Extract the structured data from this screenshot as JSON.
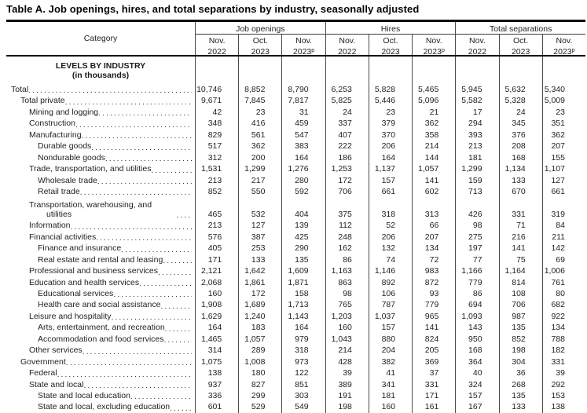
{
  "title": "Table A. Job openings, hires, and total separations by industry, seasonally adjusted",
  "header": {
    "category_label": "Category",
    "groups": [
      {
        "label": "Job openings"
      },
      {
        "label": "Hires"
      },
      {
        "label": "Total separations"
      }
    ],
    "columns": [
      {
        "month": "Nov.",
        "year": "2022",
        "sup": ""
      },
      {
        "month": "Oct.",
        "year": "2023",
        "sup": ""
      },
      {
        "month": "Nov.",
        "year": "2023",
        "sup": "p"
      },
      {
        "month": "Nov.",
        "year": "2022",
        "sup": ""
      },
      {
        "month": "Oct.",
        "year": "2023",
        "sup": ""
      },
      {
        "month": "Nov.",
        "year": "2023",
        "sup": "p"
      },
      {
        "month": "Nov.",
        "year": "2022",
        "sup": ""
      },
      {
        "month": "Oct.",
        "year": "2023",
        "sup": ""
      },
      {
        "month": "Nov.",
        "year": "2023",
        "sup": "p"
      }
    ]
  },
  "section_header": {
    "line1": "LEVELS BY INDUSTRY",
    "line2": "(in thousands)"
  },
  "rows": [
    {
      "label": "Total",
      "indent": 0,
      "wrap": false,
      "values": [
        "10,746",
        "8,852",
        "8,790",
        "6,253",
        "5,828",
        "5,465",
        "5,945",
        "5,632",
        "5,340"
      ]
    },
    {
      "label": "Total private",
      "indent": 1,
      "wrap": false,
      "values": [
        "9,671",
        "7,845",
        "7,817",
        "5,825",
        "5,446",
        "5,096",
        "5,582",
        "5,328",
        "5,009"
      ]
    },
    {
      "label": "Mining and logging",
      "indent": 2,
      "wrap": false,
      "values": [
        "42",
        "23",
        "31",
        "24",
        "23",
        "21",
        "17",
        "24",
        "23"
      ]
    },
    {
      "label": "Construction",
      "indent": 2,
      "wrap": false,
      "values": [
        "348",
        "416",
        "459",
        "337",
        "379",
        "362",
        "294",
        "345",
        "351"
      ]
    },
    {
      "label": "Manufacturing",
      "indent": 2,
      "wrap": false,
      "values": [
        "829",
        "561",
        "547",
        "407",
        "370",
        "358",
        "393",
        "376",
        "362"
      ]
    },
    {
      "label": "Durable goods",
      "indent": 3,
      "wrap": false,
      "values": [
        "517",
        "362",
        "383",
        "222",
        "206",
        "214",
        "213",
        "208",
        "207"
      ]
    },
    {
      "label": "Nondurable goods",
      "indent": 3,
      "wrap": false,
      "values": [
        "312",
        "200",
        "164",
        "186",
        "164",
        "144",
        "181",
        "168",
        "155"
      ]
    },
    {
      "label": "Trade, transportation, and utilities",
      "indent": 2,
      "wrap": false,
      "values": [
        "1,531",
        "1,299",
        "1,276",
        "1,253",
        "1,137",
        "1,057",
        "1,299",
        "1,134",
        "1,107"
      ]
    },
    {
      "label": "Wholesale trade",
      "indent": 3,
      "wrap": false,
      "values": [
        "213",
        "217",
        "280",
        "172",
        "157",
        "141",
        "159",
        "133",
        "127"
      ]
    },
    {
      "label": "Retail trade",
      "indent": 3,
      "wrap": false,
      "values": [
        "852",
        "550",
        "592",
        "706",
        "661",
        "602",
        "713",
        "670",
        "661"
      ]
    },
    {
      "label": "Transportation, warehousing, and utilities",
      "indent": 3,
      "wrap": true,
      "values": [
        "465",
        "532",
        "404",
        "375",
        "318",
        "313",
        "426",
        "331",
        "319"
      ]
    },
    {
      "label": "Information",
      "indent": 2,
      "wrap": false,
      "values": [
        "213",
        "127",
        "139",
        "112",
        "52",
        "66",
        "98",
        "71",
        "84"
      ]
    },
    {
      "label": "Financial activities",
      "indent": 2,
      "wrap": false,
      "values": [
        "576",
        "387",
        "425",
        "248",
        "206",
        "207",
        "275",
        "216",
        "211"
      ]
    },
    {
      "label": "Finance and insurance",
      "indent": 3,
      "wrap": false,
      "values": [
        "405",
        "253",
        "290",
        "162",
        "132",
        "134",
        "197",
        "141",
        "142"
      ]
    },
    {
      "label": "Real estate and rental and leasing",
      "indent": 3,
      "wrap": false,
      "values": [
        "171",
        "133",
        "135",
        "86",
        "74",
        "72",
        "77",
        "75",
        "69"
      ]
    },
    {
      "label": "Professional and business services",
      "indent": 2,
      "wrap": false,
      "values": [
        "2,121",
        "1,642",
        "1,609",
        "1,163",
        "1,146",
        "983",
        "1,166",
        "1,164",
        "1,006"
      ]
    },
    {
      "label": "Education and health services",
      "indent": 2,
      "wrap": false,
      "values": [
        "2,068",
        "1,861",
        "1,871",
        "863",
        "892",
        "872",
        "779",
        "814",
        "761"
      ]
    },
    {
      "label": "Educational services",
      "indent": 3,
      "wrap": false,
      "values": [
        "160",
        "172",
        "158",
        "98",
        "106",
        "93",
        "86",
        "108",
        "80"
      ]
    },
    {
      "label": "Health care and social assistance",
      "indent": 3,
      "wrap": false,
      "values": [
        "1,908",
        "1,689",
        "1,713",
        "765",
        "787",
        "779",
        "694",
        "706",
        "682"
      ]
    },
    {
      "label": "Leisure and hospitality",
      "indent": 2,
      "wrap": false,
      "values": [
        "1,629",
        "1,240",
        "1,143",
        "1,203",
        "1,037",
        "965",
        "1,093",
        "987",
        "922"
      ]
    },
    {
      "label": "Arts, entertainment, and recreation",
      "indent": 3,
      "wrap": false,
      "values": [
        "164",
        "183",
        "164",
        "160",
        "157",
        "141",
        "143",
        "135",
        "134"
      ]
    },
    {
      "label": "Accommodation and food services",
      "indent": 3,
      "wrap": false,
      "values": [
        "1,465",
        "1,057",
        "979",
        "1,043",
        "880",
        "824",
        "950",
        "852",
        "788"
      ]
    },
    {
      "label": "Other services",
      "indent": 2,
      "wrap": false,
      "values": [
        "314",
        "289",
        "318",
        "214",
        "204",
        "205",
        "168",
        "198",
        "182"
      ]
    },
    {
      "label": "Government",
      "indent": 1,
      "wrap": false,
      "values": [
        "1,075",
        "1,008",
        "973",
        "428",
        "382",
        "369",
        "364",
        "304",
        "331"
      ]
    },
    {
      "label": "Federal",
      "indent": 2,
      "wrap": false,
      "values": [
        "138",
        "180",
        "122",
        "39",
        "41",
        "37",
        "40",
        "36",
        "39"
      ]
    },
    {
      "label": "State and local",
      "indent": 2,
      "wrap": false,
      "values": [
        "937",
        "827",
        "851",
        "389",
        "341",
        "331",
        "324",
        "268",
        "292"
      ]
    },
    {
      "label": "State and local education",
      "indent": 3,
      "wrap": false,
      "values": [
        "336",
        "299",
        "303",
        "191",
        "181",
        "171",
        "157",
        "135",
        "153"
      ]
    },
    {
      "label": "State and local, excluding education",
      "indent": 3,
      "wrap": false,
      "values": [
        "601",
        "529",
        "549",
        "198",
        "160",
        "161",
        "167",
        "133",
        "138"
      ]
    }
  ]
}
